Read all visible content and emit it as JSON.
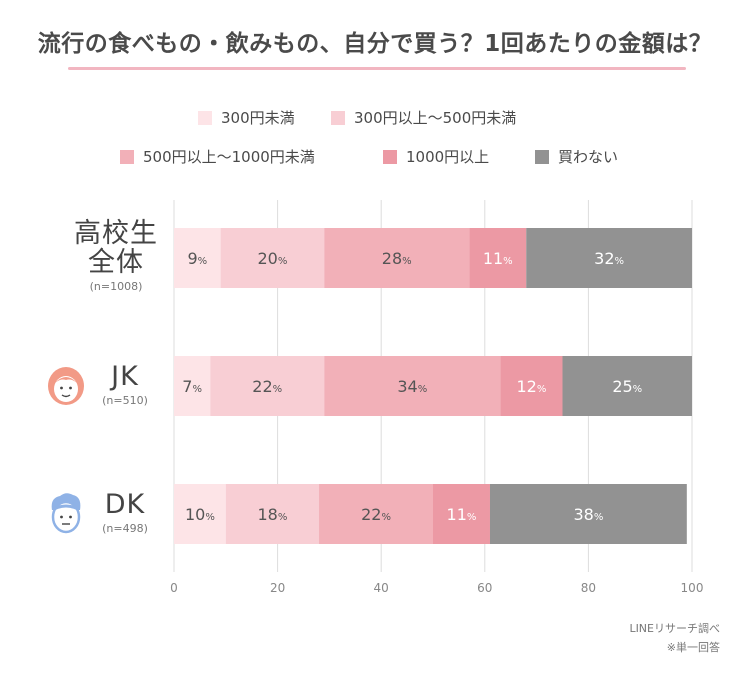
{
  "title": "流行の食べもの・飲みもの、自分で買う？1回あたりの金額は？",
  "footnotes": {
    "source": "LINEリサーチ調べ",
    "note": "※単一回答"
  },
  "colors": {
    "title_rule": "#f2b6c1",
    "grid": "#dddddd",
    "axis_text": "#888888",
    "jk_icon": "#f29a86",
    "dk_icon": "#8fb2e6"
  },
  "chart_data": {
    "type": "bar",
    "orientation": "horizontal",
    "stacked": true,
    "title": "流行の食べもの・飲みもの、自分で買う？1回あたりの金額は？",
    "xlim": [
      0,
      100
    ],
    "xticks": [
      "0",
      "20",
      "40",
      "60",
      "80",
      "100"
    ],
    "grid": true,
    "legend_position": "top",
    "categories": [
      {
        "label_lines": [
          "高校生",
          "全体"
        ],
        "n": "(n=1008)",
        "icon": ""
      },
      {
        "label_lines": [
          "JK"
        ],
        "n": "(n=510)",
        "icon": "girl-face-icon"
      },
      {
        "label_lines": [
          "DK"
        ],
        "n": "(n=498)",
        "icon": "boy-face-icon"
      }
    ],
    "series": [
      {
        "name": "300円未満",
        "color": "#fde4e7",
        "values": [
          9,
          7,
          10
        ]
      },
      {
        "name": "300円以上〜500円未満",
        "color": "#f8ced4",
        "values": [
          20,
          22,
          18
        ]
      },
      {
        "name": "500円以上〜1000円未満",
        "color": "#f2b0b8",
        "values": [
          28,
          34,
          22
        ]
      },
      {
        "name": "1000円以上",
        "color": "#ec99a4",
        "values": [
          11,
          12,
          11
        ]
      },
      {
        "name": "買わない",
        "color": "#929292",
        "values": [
          32,
          25,
          38
        ]
      }
    ],
    "value_suffix": "%"
  }
}
